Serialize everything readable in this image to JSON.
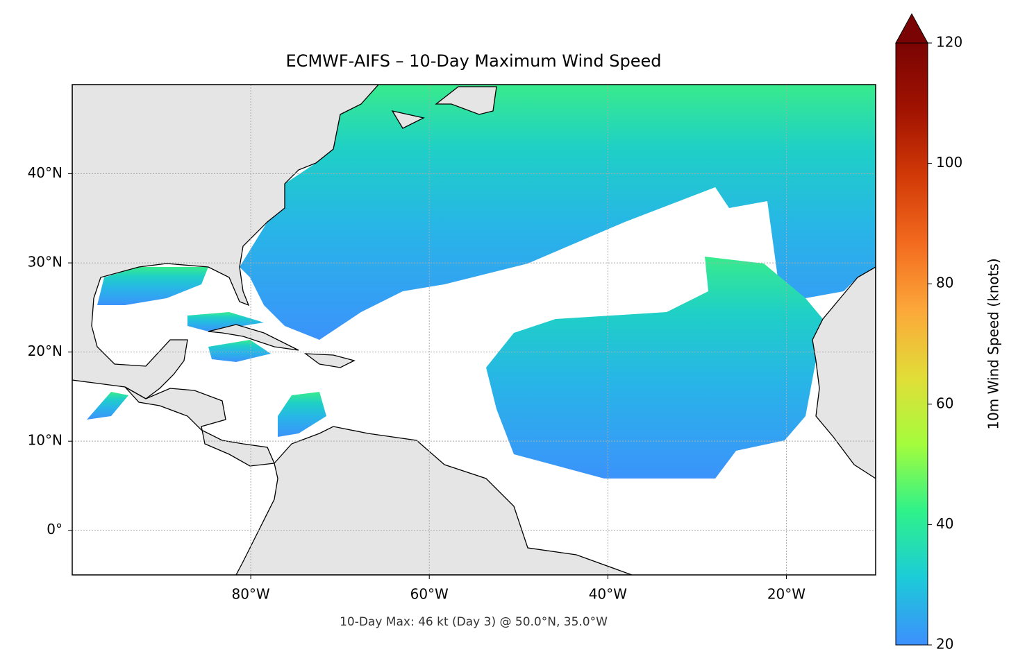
{
  "chart_data": {
    "type": "map",
    "title": "ECMWF-AIFS – 10-Day Maximum Wind Speed",
    "footnote": "10-Day Max: 46 kt (Day 3) @ 50.0°N, 35.0°W",
    "xlim": [
      -100,
      -10
    ],
    "ylim": [
      -5,
      50
    ],
    "xticks": [
      {
        "value": -80,
        "label": "80°W"
      },
      {
        "value": -60,
        "label": "60°W"
      },
      {
        "value": -40,
        "label": "40°W"
      },
      {
        "value": -20,
        "label": "20°W"
      }
    ],
    "yticks": [
      {
        "value": 0,
        "label": "0°"
      },
      {
        "value": 10,
        "label": "10°N"
      },
      {
        "value": 20,
        "label": "20°N"
      },
      {
        "value": 30,
        "label": "30°N"
      },
      {
        "value": 40,
        "label": "40°N"
      }
    ],
    "grid": true,
    "colorbar": {
      "label": "10m Wind Speed (knots)",
      "lim": [
        20,
        120
      ],
      "ticks": [
        20,
        40,
        60,
        80,
        100,
        120
      ],
      "colors": [
        "#3d8ffd",
        "#1ccbd8",
        "#2ef28a",
        "#a4fc3c",
        "#e1dd37",
        "#fca83a",
        "#f36b1f",
        "#d23a07",
        "#a11201",
        "#7a0403"
      ]
    }
  }
}
